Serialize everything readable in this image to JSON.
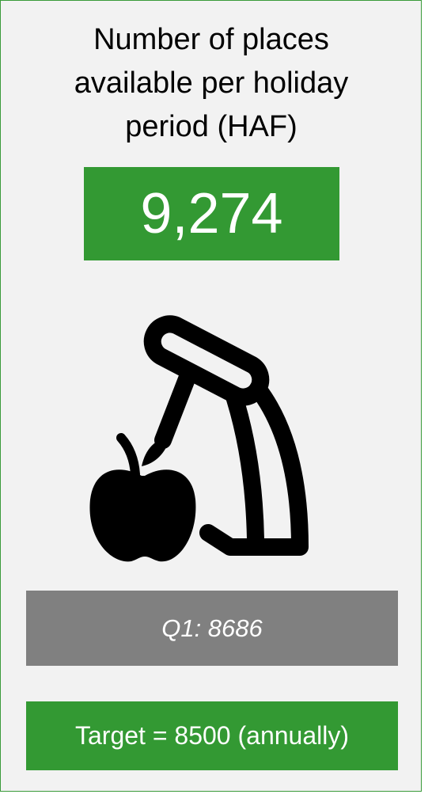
{
  "card": {
    "title": "Number of places available per holiday period (HAF)",
    "value": "9,274",
    "previous": "Q1: 8686",
    "target": "Target = 8500 (annually)"
  }
}
